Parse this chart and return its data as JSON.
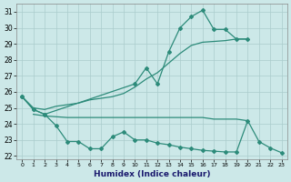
{
  "xlabel": "Humidex (Indice chaleur)",
  "color": "#2d8b7a",
  "bg_color": "#cce8e8",
  "grid_color": "#aacccc",
  "ylim": [
    21.8,
    31.5
  ],
  "yticks": [
    22,
    23,
    24,
    25,
    26,
    27,
    28,
    29,
    30,
    31
  ],
  "xlim": [
    -0.5,
    23.5
  ],
  "xticks": [
    0,
    1,
    2,
    3,
    4,
    5,
    6,
    7,
    8,
    9,
    10,
    11,
    12,
    13,
    14,
    15,
    16,
    17,
    18,
    19,
    20,
    21,
    22,
    23
  ],
  "curve_upper_x": [
    0,
    1,
    2,
    10,
    11,
    12,
    13,
    14,
    15,
    16,
    17,
    18,
    19,
    20
  ],
  "curve_upper_y": [
    25.7,
    24.9,
    24.6,
    26.5,
    27.5,
    26.5,
    28.5,
    30.0,
    30.7,
    31.1,
    29.9,
    29.9,
    29.3,
    29.3
  ],
  "curve_rising_x": [
    0,
    1,
    2,
    3,
    4,
    5,
    6,
    7,
    8,
    9,
    10,
    11,
    12,
    13,
    14,
    15,
    16,
    17,
    18,
    19,
    20
  ],
  "curve_rising_y": [
    25.7,
    25.0,
    24.9,
    25.1,
    25.2,
    25.3,
    25.5,
    25.6,
    25.7,
    25.9,
    26.3,
    26.8,
    27.2,
    27.8,
    28.4,
    28.9,
    29.1,
    29.15,
    29.2,
    29.3,
    29.3
  ],
  "curve_flat_x": [
    1,
    2,
    3,
    4,
    5,
    6,
    7,
    8,
    9,
    10,
    11,
    12,
    13,
    14,
    15,
    16,
    17,
    18,
    19,
    20
  ],
  "curve_flat_y": [
    24.6,
    24.5,
    24.45,
    24.4,
    24.4,
    24.4,
    24.4,
    24.4,
    24.4,
    24.4,
    24.4,
    24.4,
    24.4,
    24.4,
    24.4,
    24.4,
    24.3,
    24.3,
    24.3,
    24.2
  ],
  "curve_lower_x": [
    0,
    1,
    2,
    3,
    4,
    5,
    6,
    7,
    8,
    9,
    10,
    11,
    12,
    13,
    14,
    15,
    16,
    17,
    18,
    19,
    20,
    21,
    22,
    23
  ],
  "curve_lower_y": [
    25.7,
    24.9,
    24.6,
    23.9,
    22.9,
    22.9,
    22.45,
    22.45,
    23.2,
    23.5,
    23.0,
    23.0,
    22.8,
    22.7,
    22.55,
    22.45,
    22.35,
    22.3,
    22.25,
    22.25,
    24.2,
    22.9,
    22.5,
    22.2
  ]
}
